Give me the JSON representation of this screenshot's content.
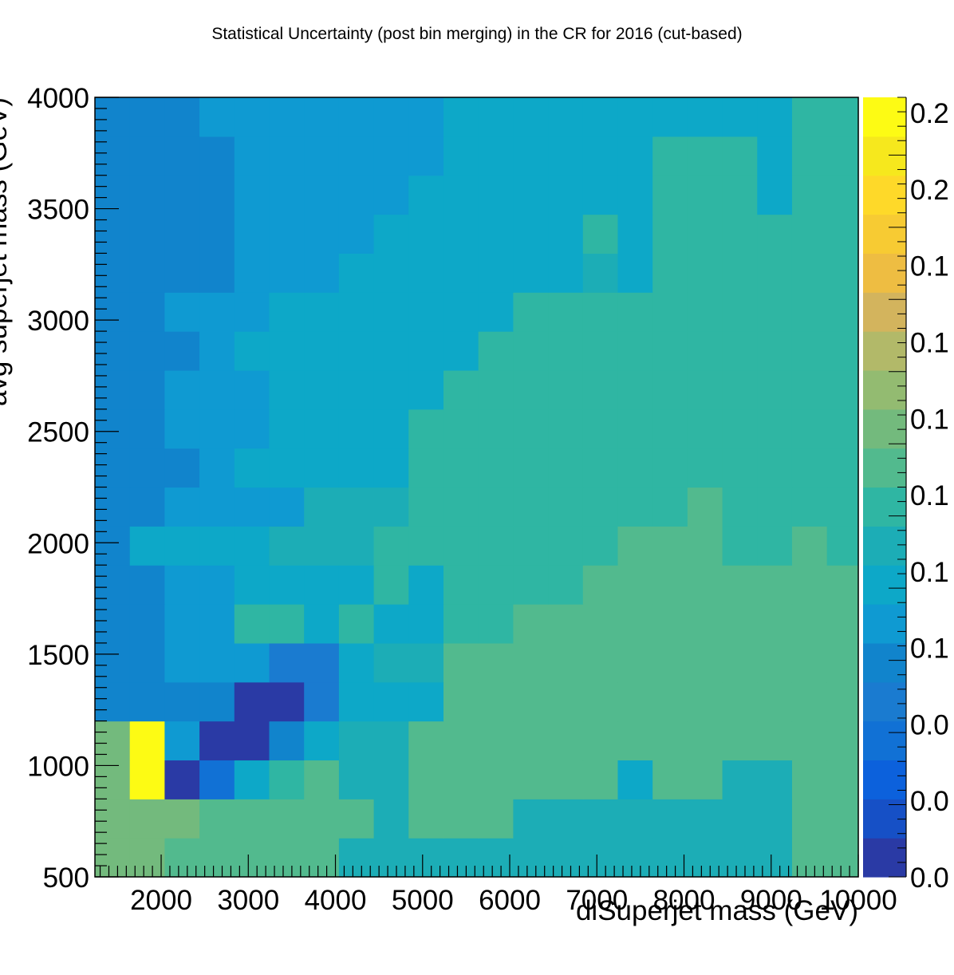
{
  "chart_data": {
    "type": "heatmap",
    "title": "Statistical Uncertainty (post bin merging) in the CR for 2016 (cut-based)",
    "xlabel": "diSuperjet mass (GeV)",
    "ylabel": "avg superjet mass (GeV)",
    "xlim": [
      1240,
      10000
    ],
    "ylim": [
      500,
      4000
    ],
    "x_ticks": [
      "2000",
      "3000",
      "4000",
      "5000",
      "6000",
      "7000",
      "8000",
      "9000",
      "10000"
    ],
    "y_ticks": [
      "500",
      "1000",
      "1500",
      "2000",
      "2500",
      "3000",
      "3500",
      "4000"
    ],
    "colorbar_ticks": [
      "0.0",
      "0.0",
      "0.0",
      "0.1",
      "0.1",
      "0.1",
      "0.1",
      "0.1",
      "0.1",
      "0.2",
      "0.2"
    ],
    "x_bins": [
      1240,
      1640,
      2040,
      2440,
      2840,
      3240,
      3640,
      4040,
      4440,
      4840,
      5240,
      5640,
      6040,
      6440,
      6840,
      7240,
      7640,
      8040,
      8440,
      8840,
      9240,
      9640,
      10000
    ],
    "y_bins": [
      500,
      675,
      850,
      1025,
      1200,
      1375,
      1550,
      1725,
      1900,
      2075,
      2250,
      2425,
      2600,
      2775,
      2950,
      3125,
      3300,
      3475,
      3650,
      3825,
      4000
    ],
    "z": [
      [
        0.13,
        0.13,
        0.12,
        0.12,
        0.12,
        0.12,
        0.12,
        0.09,
        0.09,
        0.09,
        0.09,
        0.09,
        0.09,
        0.09,
        0.09,
        0.09,
        0.09,
        0.09,
        0.09,
        0.09,
        0.11,
        0.11
      ],
      [
        0.13,
        0.13,
        0.13,
        0.12,
        0.12,
        0.12,
        0.12,
        0.12,
        0.09,
        0.11,
        0.11,
        0.11,
        0.09,
        0.09,
        0.09,
        0.09,
        0.09,
        0.09,
        0.09,
        0.09,
        0.11,
        0.11
      ],
      [
        0.13,
        0.22,
        0.01,
        0.04,
        0.08,
        0.1,
        0.12,
        0.09,
        0.09,
        0.11,
        0.11,
        0.11,
        0.11,
        0.11,
        0.11,
        0.08,
        0.11,
        0.11,
        0.09,
        0.09,
        0.11,
        0.11
      ],
      [
        0.13,
        0.22,
        0.07,
        0.01,
        0.01,
        0.06,
        0.08,
        0.09,
        0.09,
        0.11,
        0.11,
        0.11,
        0.11,
        0.11,
        0.11,
        0.11,
        0.11,
        0.11,
        0.11,
        0.11,
        0.11,
        0.11
      ],
      [
        0.06,
        0.06,
        0.06,
        0.06,
        0.01,
        0.01,
        0.05,
        0.08,
        0.08,
        0.08,
        0.11,
        0.11,
        0.11,
        0.11,
        0.11,
        0.11,
        0.11,
        0.11,
        0.11,
        0.11,
        0.11,
        0.11
      ],
      [
        0.06,
        0.06,
        0.07,
        0.07,
        0.07,
        0.05,
        0.05,
        0.08,
        0.09,
        0.09,
        0.11,
        0.11,
        0.11,
        0.11,
        0.11,
        0.11,
        0.11,
        0.11,
        0.11,
        0.11,
        0.11,
        0.11
      ],
      [
        0.06,
        0.06,
        0.07,
        0.07,
        0.1,
        0.1,
        0.08,
        0.1,
        0.08,
        0.08,
        0.1,
        0.1,
        0.11,
        0.11,
        0.11,
        0.11,
        0.11,
        0.11,
        0.11,
        0.11,
        0.11,
        0.11
      ],
      [
        0.06,
        0.06,
        0.07,
        0.07,
        0.08,
        0.08,
        0.08,
        0.08,
        0.1,
        0.08,
        0.1,
        0.1,
        0.1,
        0.1,
        0.11,
        0.11,
        0.11,
        0.11,
        0.11,
        0.11,
        0.11,
        0.11
      ],
      [
        0.06,
        0.08,
        0.08,
        0.08,
        0.08,
        0.09,
        0.09,
        0.09,
        0.1,
        0.1,
        0.1,
        0.1,
        0.1,
        0.1,
        0.1,
        0.11,
        0.11,
        0.11,
        0.1,
        0.1,
        0.11,
        0.1
      ],
      [
        0.06,
        0.06,
        0.07,
        0.07,
        0.07,
        0.07,
        0.09,
        0.09,
        0.09,
        0.1,
        0.1,
        0.1,
        0.1,
        0.1,
        0.1,
        0.1,
        0.1,
        0.11,
        0.1,
        0.1,
        0.1,
        0.1
      ],
      [
        0.06,
        0.06,
        0.06,
        0.07,
        0.08,
        0.08,
        0.08,
        0.08,
        0.08,
        0.1,
        0.1,
        0.1,
        0.1,
        0.1,
        0.1,
        0.1,
        0.1,
        0.1,
        0.1,
        0.1,
        0.1,
        0.1
      ],
      [
        0.06,
        0.06,
        0.07,
        0.07,
        0.07,
        0.08,
        0.08,
        0.08,
        0.08,
        0.1,
        0.1,
        0.1,
        0.1,
        0.1,
        0.1,
        0.1,
        0.1,
        0.1,
        0.1,
        0.1,
        0.1,
        0.1
      ],
      [
        0.06,
        0.06,
        0.07,
        0.07,
        0.07,
        0.08,
        0.08,
        0.08,
        0.08,
        0.08,
        0.1,
        0.1,
        0.1,
        0.1,
        0.1,
        0.1,
        0.1,
        0.1,
        0.1,
        0.1,
        0.1,
        0.1
      ],
      [
        0.06,
        0.06,
        0.06,
        0.07,
        0.08,
        0.08,
        0.08,
        0.08,
        0.08,
        0.08,
        0.08,
        0.1,
        0.1,
        0.1,
        0.1,
        0.1,
        0.1,
        0.1,
        0.1,
        0.1,
        0.1,
        0.1
      ],
      [
        0.06,
        0.06,
        0.07,
        0.07,
        0.07,
        0.08,
        0.08,
        0.08,
        0.08,
        0.08,
        0.08,
        0.08,
        0.1,
        0.1,
        0.1,
        0.1,
        0.1,
        0.1,
        0.1,
        0.1,
        0.1,
        0.1
      ],
      [
        0.06,
        0.06,
        0.06,
        0.06,
        0.07,
        0.07,
        0.07,
        0.08,
        0.08,
        0.08,
        0.08,
        0.08,
        0.08,
        0.08,
        0.09,
        0.08,
        0.1,
        0.1,
        0.1,
        0.1,
        0.1,
        0.1
      ],
      [
        0.06,
        0.06,
        0.06,
        0.06,
        0.07,
        0.07,
        0.07,
        0.07,
        0.08,
        0.08,
        0.08,
        0.08,
        0.08,
        0.08,
        0.1,
        0.08,
        0.1,
        0.1,
        0.1,
        0.1,
        0.1,
        0.1
      ],
      [
        0.06,
        0.06,
        0.06,
        0.06,
        0.07,
        0.07,
        0.07,
        0.07,
        0.07,
        0.08,
        0.08,
        0.08,
        0.08,
        0.08,
        0.08,
        0.08,
        0.1,
        0.1,
        0.1,
        0.08,
        0.1,
        0.1
      ],
      [
        0.06,
        0.06,
        0.06,
        0.06,
        0.07,
        0.07,
        0.07,
        0.07,
        0.07,
        0.07,
        0.08,
        0.08,
        0.08,
        0.08,
        0.08,
        0.08,
        0.1,
        0.1,
        0.1,
        0.08,
        0.1,
        0.1
      ],
      [
        0.06,
        0.06,
        0.06,
        0.07,
        0.07,
        0.07,
        0.07,
        0.07,
        0.07,
        0.07,
        0.08,
        0.08,
        0.08,
        0.08,
        0.08,
        0.08,
        0.08,
        0.08,
        0.08,
        0.08,
        0.1,
        0.1
      ]
    ]
  }
}
